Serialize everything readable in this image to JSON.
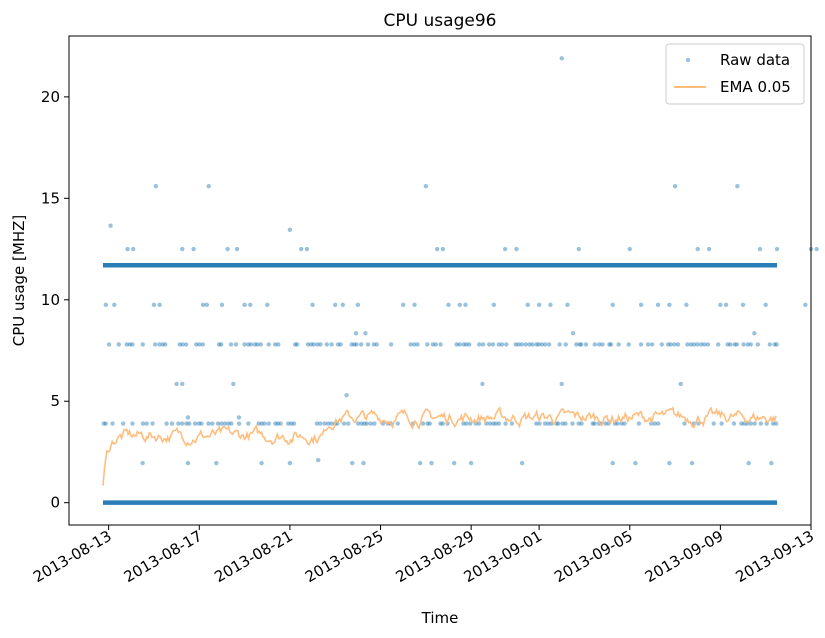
{
  "chart_data": {
    "type": "scatter",
    "title": "CPU usage96",
    "xlabel": "Time",
    "ylabel": "CPU usage [MHZ]",
    "x_type": "date",
    "xlim": [
      "2013-08-11T06:00",
      "2013-09-13T00:00"
    ],
    "ylim": [
      -1.1,
      23.0
    ],
    "x_ticks": [
      "2013-08-13",
      "2013-08-17",
      "2013-08-21",
      "2013-08-25",
      "2013-08-29",
      "2013-09-01",
      "2013-09-05",
      "2013-09-09",
      "2013-09-13"
    ],
    "y_ticks": [
      0,
      5,
      10,
      15,
      20
    ],
    "legend_position": "top-right",
    "grid": false,
    "data_range": [
      "2013-08-12T18:00",
      "2013-09-11T12:00"
    ],
    "series": [
      {
        "name": "Raw data",
        "kind": "points",
        "color": "#1f77b4",
        "dense_levels": [
          0,
          11.7
        ],
        "sparse_levels": [
          3.9,
          7.8
        ],
        "points": [
          [
            "2013-08-12T21:00",
            9.75
          ],
          [
            "2013-08-13T02:00",
            13.65
          ],
          [
            "2013-08-13T06:00",
            9.75
          ],
          [
            "2013-08-13T20:00",
            12.5
          ],
          [
            "2013-08-14T02:00",
            12.5
          ],
          [
            "2013-08-15T02:00",
            15.6
          ],
          [
            "2013-08-15T00:00",
            9.75
          ],
          [
            "2013-08-15T06:00",
            9.75
          ],
          [
            "2013-08-16T06:00",
            12.5
          ],
          [
            "2013-08-16T18:00",
            12.5
          ],
          [
            "2013-08-17T04:00",
            9.75
          ],
          [
            "2013-08-17T08:00",
            9.75
          ],
          [
            "2013-08-17T10:00",
            15.6
          ],
          [
            "2013-08-18T00:00",
            9.75
          ],
          [
            "2013-08-18T06:00",
            12.5
          ],
          [
            "2013-08-18T16:00",
            12.5
          ],
          [
            "2013-08-19T00:00",
            9.75
          ],
          [
            "2013-08-19T06:00",
            9.75
          ],
          [
            "2013-08-20T00:00",
            9.75
          ],
          [
            "2013-08-21T00:00",
            13.45
          ],
          [
            "2013-08-21T12:00",
            12.5
          ],
          [
            "2013-08-21T18:00",
            12.5
          ],
          [
            "2013-08-22T00:00",
            9.75
          ],
          [
            "2013-08-23T00:00",
            9.75
          ],
          [
            "2013-08-23T08:00",
            9.75
          ],
          [
            "2013-08-23T22:00",
            8.35
          ],
          [
            "2013-08-24T08:00",
            8.35
          ],
          [
            "2013-08-24T00:00",
            9.75
          ],
          [
            "2013-08-26T00:00",
            9.75
          ],
          [
            "2013-08-26T12:00",
            9.75
          ],
          [
            "2013-08-27T00:00",
            15.6
          ],
          [
            "2013-08-27T12:00",
            12.5
          ],
          [
            "2013-08-27T18:00",
            12.5
          ],
          [
            "2013-08-28T00:00",
            9.75
          ],
          [
            "2013-08-28T12:00",
            9.75
          ],
          [
            "2013-08-28T18:00",
            9.75
          ],
          [
            "2013-08-30T00:00",
            9.75
          ],
          [
            "2013-08-30T12:00",
            12.5
          ],
          [
            "2013-08-31T00:00",
            12.5
          ],
          [
            "2013-08-31T12:00",
            9.75
          ],
          [
            "2013-09-01T00:00",
            9.75
          ],
          [
            "2013-09-01T12:00",
            9.75
          ],
          [
            "2013-09-02T00:00",
            21.9
          ],
          [
            "2013-09-02T06:00",
            9.75
          ],
          [
            "2013-09-02T12:00",
            8.35
          ],
          [
            "2013-09-02T18:00",
            12.5
          ],
          [
            "2013-09-04T06:00",
            9.75
          ],
          [
            "2013-09-05T00:00",
            12.5
          ],
          [
            "2013-09-05T12:00",
            9.75
          ],
          [
            "2013-09-06T06:00",
            9.75
          ],
          [
            "2013-09-06T18:00",
            9.75
          ],
          [
            "2013-09-07T00:00",
            15.6
          ],
          [
            "2013-09-07T12:00",
            9.75
          ],
          [
            "2013-09-08T00:00",
            12.5
          ],
          [
            "2013-09-08T12:00",
            12.5
          ],
          [
            "2013-09-09T00:00",
            9.75
          ],
          [
            "2013-09-09T06:00",
            9.75
          ],
          [
            "2013-09-09T18:00",
            15.6
          ],
          [
            "2013-09-10T00:00",
            9.75
          ],
          [
            "2013-09-10T12:00",
            8.35
          ],
          [
            "2013-09-10T18:00",
            12.5
          ],
          [
            "2013-09-11T00:00",
            9.75
          ],
          [
            "2013-09-11T12:00",
            12.5
          ],
          [
            "2013-09-12T18:00",
            9.75
          ],
          [
            "2013-09-13T00:00",
            12.5
          ],
          [
            "2013-09-13T06:00",
            12.5
          ],
          [
            "2013-09-13T18:00",
            12.5
          ],
          [
            "2013-08-16T00:00",
            5.85
          ],
          [
            "2013-08-16T06:00",
            5.85
          ],
          [
            "2013-08-18T12:00",
            5.85
          ],
          [
            "2013-08-29T12:00",
            5.85
          ],
          [
            "2013-09-02T00:00",
            5.85
          ],
          [
            "2013-09-07T06:00",
            5.85
          ],
          [
            "2013-08-23T12:00",
            5.3
          ],
          [
            "2013-08-16T12:00",
            4.2
          ],
          [
            "2013-08-18T18:00",
            4.2
          ],
          [
            "2013-08-22T06:00",
            2.1
          ],
          [
            "2013-08-14T12:00",
            1.95
          ],
          [
            "2013-08-16T12:00",
            1.95
          ],
          [
            "2013-08-17T18:00",
            1.95
          ],
          [
            "2013-08-19T18:00",
            1.95
          ],
          [
            "2013-08-21T00:00",
            1.95
          ],
          [
            "2013-08-23T18:00",
            1.95
          ],
          [
            "2013-08-24T06:00",
            1.95
          ],
          [
            "2013-08-26T18:00",
            1.95
          ],
          [
            "2013-08-27T06:00",
            1.95
          ],
          [
            "2013-08-28T06:00",
            1.95
          ],
          [
            "2013-08-29T00:00",
            1.95
          ],
          [
            "2013-08-31T06:00",
            1.95
          ],
          [
            "2013-09-04T06:00",
            1.95
          ],
          [
            "2013-09-05T06:00",
            1.95
          ],
          [
            "2013-09-06T18:00",
            1.95
          ],
          [
            "2013-09-07T18:00",
            1.95
          ],
          [
            "2013-09-10T06:00",
            1.95
          ],
          [
            "2013-09-11T06:00",
            1.95
          ]
        ]
      },
      {
        "name": "EMA 0.05",
        "kind": "line",
        "color": "#ffbb78",
        "segments": [
          {
            "start": "2013-08-12T18:00",
            "end": "2013-08-22T12:00",
            "level": 3.3
          },
          {
            "start": "2013-08-22T12:00",
            "end": "2013-09-11T12:00",
            "level": 4.2
          }
        ],
        "initial_value": 0
      }
    ]
  }
}
